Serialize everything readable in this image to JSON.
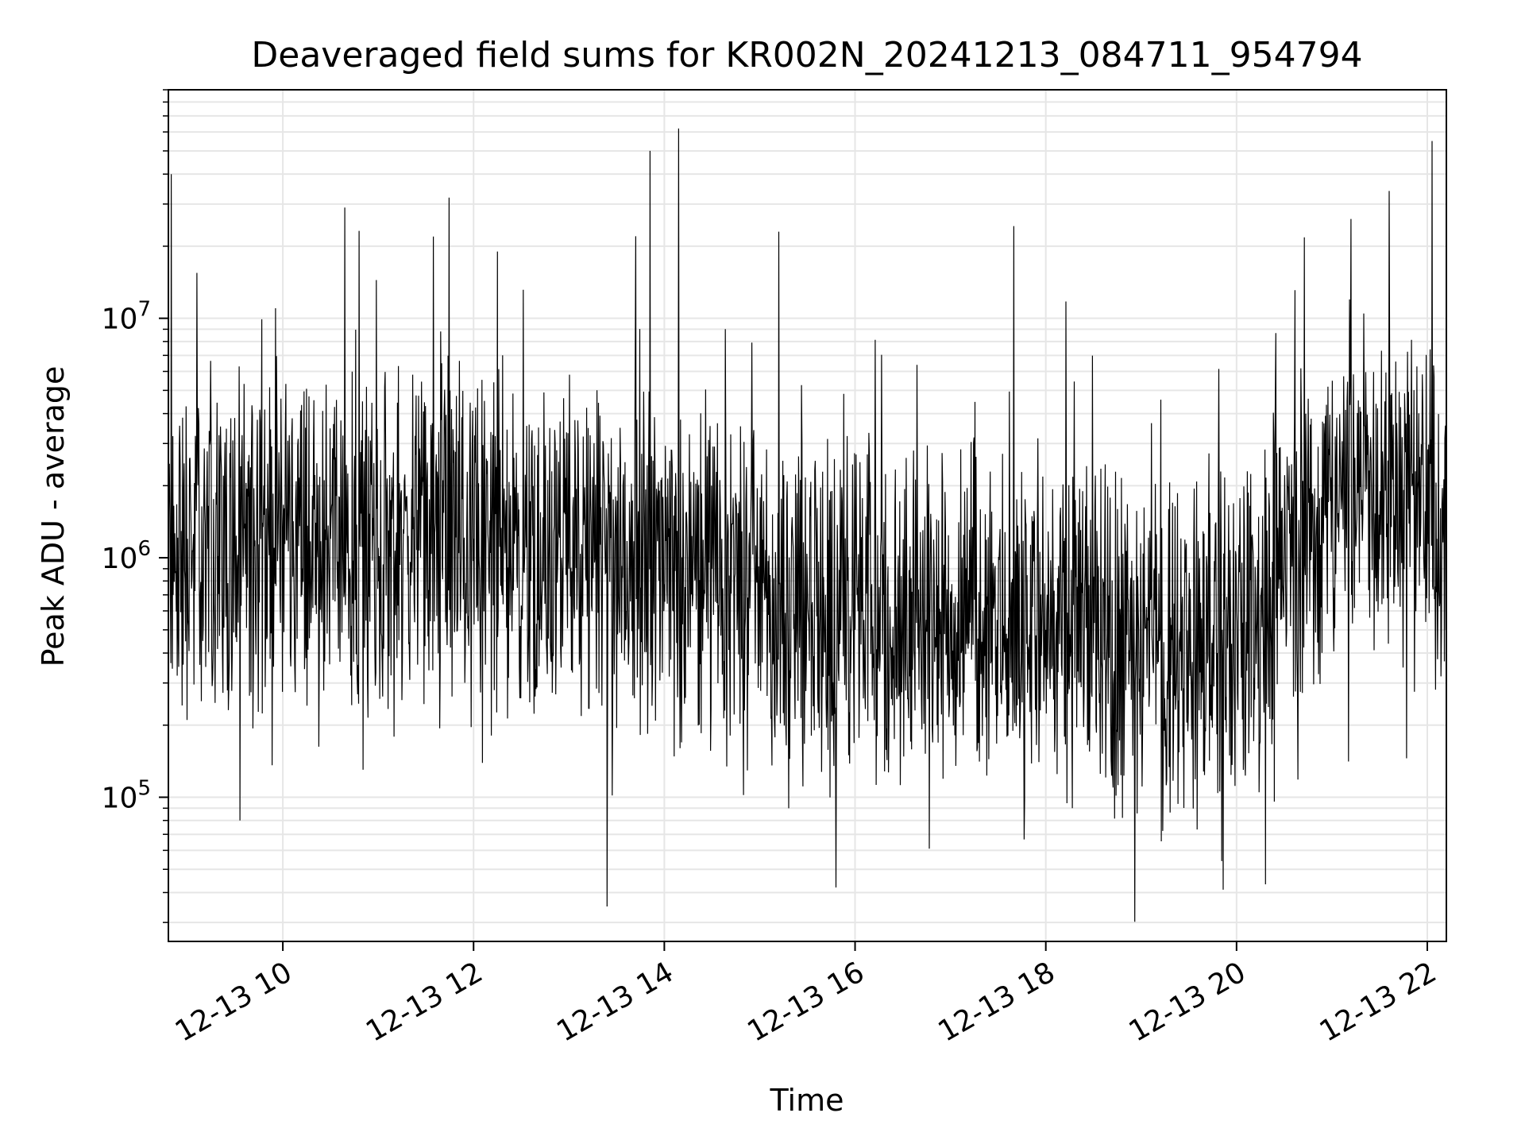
{
  "chart_data": {
    "type": "line",
    "title": "Deaveraged field sums for KR002N_20241213_084711_954794",
    "xlabel": "Time",
    "ylabel": "Peak ADU - average",
    "x_ticks": [
      "12-13 10",
      "12-13 12",
      "12-13 14",
      "12-13 16",
      "12-13 18",
      "12-13 20",
      "12-13 22"
    ],
    "x_tick_hours": [
      10,
      12,
      14,
      16,
      18,
      20,
      22
    ],
    "y_ticks": [
      {
        "value": 100000,
        "base": "10",
        "exp": "5"
      },
      {
        "value": 1000000,
        "base": "10",
        "exp": "6"
      },
      {
        "value": 10000000,
        "base": "10",
        "exp": "7"
      }
    ],
    "xlim_hours": [
      8.8,
      22.2
    ],
    "ylim": [
      25000,
      90000000
    ],
    "y_scale": "log",
    "grid": true,
    "line_color": "#000000",
    "grid_color": "#e6e6e6",
    "series": [
      {
        "x_hours": [
          8.8,
          8.83,
          8.85,
          9.0,
          9.2,
          9.5,
          9.55,
          9.8,
          10.0,
          10.2,
          10.5,
          10.65,
          10.7,
          11.0,
          11.3,
          11.6,
          12.0,
          12.25,
          12.3,
          12.6,
          13.0,
          13.4,
          13.6,
          13.7,
          13.85,
          14.1,
          14.15,
          14.5,
          15.0,
          15.2,
          15.5,
          15.8,
          15.9,
          16.0,
          16.3,
          16.5,
          17.0,
          17.5,
          18.0,
          18.5,
          18.8,
          19.0,
          19.4,
          19.8,
          20.0,
          20.2,
          20.5,
          20.8,
          21.0,
          21.2,
          21.4,
          21.6,
          21.8,
          22.0,
          22.05,
          22.1,
          22.2
        ],
        "y": [
          1000000,
          40000000,
          700000,
          1200000,
          1500000,
          1100000,
          80000,
          2000000,
          1300000,
          700000,
          1200000,
          29000000,
          900000,
          1100000,
          1800000,
          1400000,
          1200000,
          19000000,
          700000,
          800000,
          900000,
          35000,
          600000,
          22000000,
          50000000,
          1500000,
          62000000,
          900000,
          700000,
          23000000,
          800000,
          42000,
          600000,
          500000,
          700000,
          600000,
          700000,
          600000,
          500000,
          400000,
          350000,
          500000,
          450000,
          400000,
          600000,
          700000,
          1300000,
          1800000,
          2200000,
          26000000,
          2500000,
          34000000,
          1600000,
          1500000,
          55000000,
          1200000,
          1400000
        ]
      }
    ]
  }
}
